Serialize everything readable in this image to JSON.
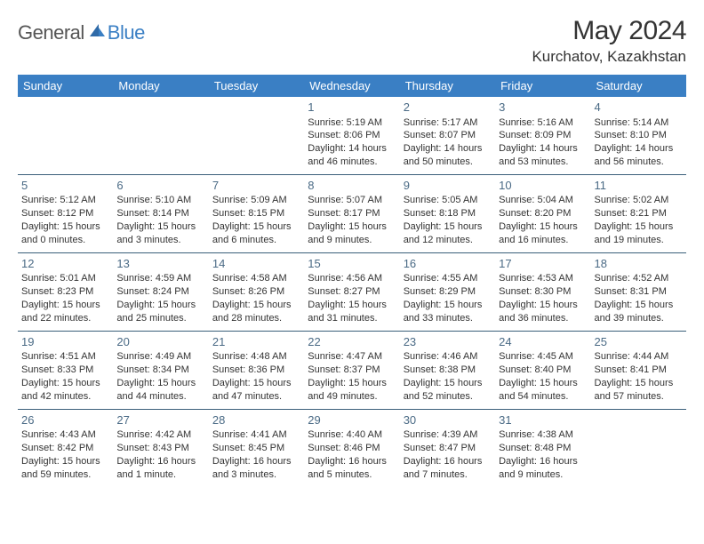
{
  "brand": {
    "part1": "General",
    "part2": "Blue"
  },
  "title": "May 2024",
  "location": "Kurchatov, Kazakhstan",
  "colors": {
    "header_bg": "#3a7fc4",
    "header_fg": "#ffffff",
    "border": "#3a5f7a",
    "daynum": "#4a6a85",
    "text": "#333333",
    "brand_accent": "#3a7fc4",
    "brand_gray": "#555555",
    "background": "#ffffff"
  },
  "typography": {
    "body_fontsize": 11,
    "daynum_fontsize": 13,
    "header_fontsize": 13,
    "title_fontsize": 30,
    "location_fontsize": 17
  },
  "day_headers": [
    "Sunday",
    "Monday",
    "Tuesday",
    "Wednesday",
    "Thursday",
    "Friday",
    "Saturday"
  ],
  "weeks": [
    [
      null,
      null,
      null,
      {
        "d": "1",
        "sr": "Sunrise: 5:19 AM",
        "ss": "Sunset: 8:06 PM",
        "dl1": "Daylight: 14 hours",
        "dl2": "and 46 minutes."
      },
      {
        "d": "2",
        "sr": "Sunrise: 5:17 AM",
        "ss": "Sunset: 8:07 PM",
        "dl1": "Daylight: 14 hours",
        "dl2": "and 50 minutes."
      },
      {
        "d": "3",
        "sr": "Sunrise: 5:16 AM",
        "ss": "Sunset: 8:09 PM",
        "dl1": "Daylight: 14 hours",
        "dl2": "and 53 minutes."
      },
      {
        "d": "4",
        "sr": "Sunrise: 5:14 AM",
        "ss": "Sunset: 8:10 PM",
        "dl1": "Daylight: 14 hours",
        "dl2": "and 56 minutes."
      }
    ],
    [
      {
        "d": "5",
        "sr": "Sunrise: 5:12 AM",
        "ss": "Sunset: 8:12 PM",
        "dl1": "Daylight: 15 hours",
        "dl2": "and 0 minutes."
      },
      {
        "d": "6",
        "sr": "Sunrise: 5:10 AM",
        "ss": "Sunset: 8:14 PM",
        "dl1": "Daylight: 15 hours",
        "dl2": "and 3 minutes."
      },
      {
        "d": "7",
        "sr": "Sunrise: 5:09 AM",
        "ss": "Sunset: 8:15 PM",
        "dl1": "Daylight: 15 hours",
        "dl2": "and 6 minutes."
      },
      {
        "d": "8",
        "sr": "Sunrise: 5:07 AM",
        "ss": "Sunset: 8:17 PM",
        "dl1": "Daylight: 15 hours",
        "dl2": "and 9 minutes."
      },
      {
        "d": "9",
        "sr": "Sunrise: 5:05 AM",
        "ss": "Sunset: 8:18 PM",
        "dl1": "Daylight: 15 hours",
        "dl2": "and 12 minutes."
      },
      {
        "d": "10",
        "sr": "Sunrise: 5:04 AM",
        "ss": "Sunset: 8:20 PM",
        "dl1": "Daylight: 15 hours",
        "dl2": "and 16 minutes."
      },
      {
        "d": "11",
        "sr": "Sunrise: 5:02 AM",
        "ss": "Sunset: 8:21 PM",
        "dl1": "Daylight: 15 hours",
        "dl2": "and 19 minutes."
      }
    ],
    [
      {
        "d": "12",
        "sr": "Sunrise: 5:01 AM",
        "ss": "Sunset: 8:23 PM",
        "dl1": "Daylight: 15 hours",
        "dl2": "and 22 minutes."
      },
      {
        "d": "13",
        "sr": "Sunrise: 4:59 AM",
        "ss": "Sunset: 8:24 PM",
        "dl1": "Daylight: 15 hours",
        "dl2": "and 25 minutes."
      },
      {
        "d": "14",
        "sr": "Sunrise: 4:58 AM",
        "ss": "Sunset: 8:26 PM",
        "dl1": "Daylight: 15 hours",
        "dl2": "and 28 minutes."
      },
      {
        "d": "15",
        "sr": "Sunrise: 4:56 AM",
        "ss": "Sunset: 8:27 PM",
        "dl1": "Daylight: 15 hours",
        "dl2": "and 31 minutes."
      },
      {
        "d": "16",
        "sr": "Sunrise: 4:55 AM",
        "ss": "Sunset: 8:29 PM",
        "dl1": "Daylight: 15 hours",
        "dl2": "and 33 minutes."
      },
      {
        "d": "17",
        "sr": "Sunrise: 4:53 AM",
        "ss": "Sunset: 8:30 PM",
        "dl1": "Daylight: 15 hours",
        "dl2": "and 36 minutes."
      },
      {
        "d": "18",
        "sr": "Sunrise: 4:52 AM",
        "ss": "Sunset: 8:31 PM",
        "dl1": "Daylight: 15 hours",
        "dl2": "and 39 minutes."
      }
    ],
    [
      {
        "d": "19",
        "sr": "Sunrise: 4:51 AM",
        "ss": "Sunset: 8:33 PM",
        "dl1": "Daylight: 15 hours",
        "dl2": "and 42 minutes."
      },
      {
        "d": "20",
        "sr": "Sunrise: 4:49 AM",
        "ss": "Sunset: 8:34 PM",
        "dl1": "Daylight: 15 hours",
        "dl2": "and 44 minutes."
      },
      {
        "d": "21",
        "sr": "Sunrise: 4:48 AM",
        "ss": "Sunset: 8:36 PM",
        "dl1": "Daylight: 15 hours",
        "dl2": "and 47 minutes."
      },
      {
        "d": "22",
        "sr": "Sunrise: 4:47 AM",
        "ss": "Sunset: 8:37 PM",
        "dl1": "Daylight: 15 hours",
        "dl2": "and 49 minutes."
      },
      {
        "d": "23",
        "sr": "Sunrise: 4:46 AM",
        "ss": "Sunset: 8:38 PM",
        "dl1": "Daylight: 15 hours",
        "dl2": "and 52 minutes."
      },
      {
        "d": "24",
        "sr": "Sunrise: 4:45 AM",
        "ss": "Sunset: 8:40 PM",
        "dl1": "Daylight: 15 hours",
        "dl2": "and 54 minutes."
      },
      {
        "d": "25",
        "sr": "Sunrise: 4:44 AM",
        "ss": "Sunset: 8:41 PM",
        "dl1": "Daylight: 15 hours",
        "dl2": "and 57 minutes."
      }
    ],
    [
      {
        "d": "26",
        "sr": "Sunrise: 4:43 AM",
        "ss": "Sunset: 8:42 PM",
        "dl1": "Daylight: 15 hours",
        "dl2": "and 59 minutes."
      },
      {
        "d": "27",
        "sr": "Sunrise: 4:42 AM",
        "ss": "Sunset: 8:43 PM",
        "dl1": "Daylight: 16 hours",
        "dl2": "and 1 minute."
      },
      {
        "d": "28",
        "sr": "Sunrise: 4:41 AM",
        "ss": "Sunset: 8:45 PM",
        "dl1": "Daylight: 16 hours",
        "dl2": "and 3 minutes."
      },
      {
        "d": "29",
        "sr": "Sunrise: 4:40 AM",
        "ss": "Sunset: 8:46 PM",
        "dl1": "Daylight: 16 hours",
        "dl2": "and 5 minutes."
      },
      {
        "d": "30",
        "sr": "Sunrise: 4:39 AM",
        "ss": "Sunset: 8:47 PM",
        "dl1": "Daylight: 16 hours",
        "dl2": "and 7 minutes."
      },
      {
        "d": "31",
        "sr": "Sunrise: 4:38 AM",
        "ss": "Sunset: 8:48 PM",
        "dl1": "Daylight: 16 hours",
        "dl2": "and 9 minutes."
      },
      null
    ]
  ]
}
